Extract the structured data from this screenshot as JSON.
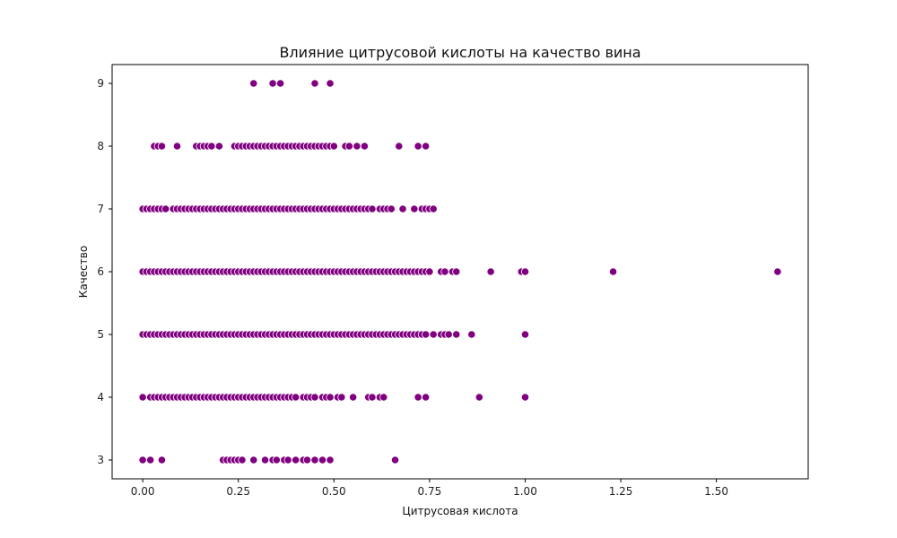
{
  "chart_data": {
    "type": "scatter",
    "title": "Влияние цитрусовой кислоты на качество вина",
    "xlabel": "Цитрусовая кислота",
    "ylabel": "Качество",
    "xlim": [
      -0.08,
      1.74
    ],
    "ylim": [
      2.7,
      9.3
    ],
    "xticks": [
      "0.00",
      "0.25",
      "0.50",
      "0.75",
      "1.00",
      "1.25",
      "1.50"
    ],
    "yticks": [
      "3",
      "4",
      "5",
      "6",
      "7",
      "8",
      "9"
    ],
    "grid": false,
    "marker_color": "#800080",
    "marker_edge_color": "#ffffff",
    "points": [
      {
        "y": 9,
        "x": [
          0.29,
          0.34,
          0.36,
          0.45,
          0.49
        ]
      },
      {
        "y": 8,
        "x": [
          0.03,
          0.04,
          0.05,
          0.09,
          0.14,
          0.15,
          0.16,
          0.17,
          0.18,
          0.2,
          0.24,
          0.25,
          0.26,
          0.27,
          0.28,
          0.29,
          0.3,
          0.31,
          0.32,
          0.33,
          0.34,
          0.35,
          0.36,
          0.37,
          0.38,
          0.39,
          0.4,
          0.41,
          0.42,
          0.43,
          0.44,
          0.45,
          0.46,
          0.47,
          0.48,
          0.49,
          0.5,
          0.53,
          0.54,
          0.56,
          0.58,
          0.67,
          0.72,
          0.74
        ]
      },
      {
        "y": 7,
        "x": [
          0.0,
          0.01,
          0.02,
          0.03,
          0.04,
          0.05,
          0.06,
          0.08,
          0.09,
          0.1,
          0.11,
          0.12,
          0.13,
          0.14,
          0.15,
          0.16,
          0.17,
          0.18,
          0.19,
          0.2,
          0.21,
          0.22,
          0.23,
          0.24,
          0.25,
          0.26,
          0.27,
          0.28,
          0.29,
          0.3,
          0.31,
          0.32,
          0.33,
          0.34,
          0.35,
          0.36,
          0.37,
          0.38,
          0.39,
          0.4,
          0.41,
          0.42,
          0.43,
          0.44,
          0.45,
          0.46,
          0.47,
          0.48,
          0.49,
          0.5,
          0.51,
          0.52,
          0.53,
          0.54,
          0.55,
          0.56,
          0.57,
          0.58,
          0.59,
          0.6,
          0.62,
          0.63,
          0.64,
          0.65,
          0.68,
          0.71,
          0.73,
          0.74,
          0.75,
          0.76
        ]
      },
      {
        "y": 6,
        "x": [
          0.0,
          0.01,
          0.02,
          0.03,
          0.04,
          0.05,
          0.06,
          0.07,
          0.08,
          0.09,
          0.1,
          0.11,
          0.12,
          0.13,
          0.14,
          0.15,
          0.16,
          0.17,
          0.18,
          0.19,
          0.2,
          0.21,
          0.22,
          0.23,
          0.24,
          0.25,
          0.26,
          0.27,
          0.28,
          0.29,
          0.3,
          0.31,
          0.32,
          0.33,
          0.34,
          0.35,
          0.36,
          0.37,
          0.38,
          0.39,
          0.4,
          0.41,
          0.42,
          0.43,
          0.44,
          0.45,
          0.46,
          0.47,
          0.48,
          0.49,
          0.5,
          0.51,
          0.52,
          0.53,
          0.54,
          0.55,
          0.56,
          0.57,
          0.58,
          0.59,
          0.6,
          0.61,
          0.62,
          0.63,
          0.64,
          0.65,
          0.66,
          0.67,
          0.68,
          0.69,
          0.7,
          0.71,
          0.72,
          0.73,
          0.74,
          0.75,
          0.78,
          0.79,
          0.81,
          0.82,
          0.91,
          0.99,
          1.0,
          1.23,
          1.66
        ]
      },
      {
        "y": 5,
        "x": [
          0.0,
          0.01,
          0.02,
          0.03,
          0.04,
          0.05,
          0.06,
          0.07,
          0.08,
          0.09,
          0.1,
          0.11,
          0.12,
          0.13,
          0.14,
          0.15,
          0.16,
          0.17,
          0.18,
          0.19,
          0.2,
          0.21,
          0.22,
          0.23,
          0.24,
          0.25,
          0.26,
          0.27,
          0.28,
          0.29,
          0.3,
          0.31,
          0.32,
          0.33,
          0.34,
          0.35,
          0.36,
          0.37,
          0.38,
          0.39,
          0.4,
          0.41,
          0.42,
          0.43,
          0.44,
          0.45,
          0.46,
          0.47,
          0.48,
          0.49,
          0.5,
          0.51,
          0.52,
          0.53,
          0.54,
          0.55,
          0.56,
          0.57,
          0.58,
          0.59,
          0.6,
          0.61,
          0.62,
          0.63,
          0.64,
          0.65,
          0.66,
          0.67,
          0.68,
          0.69,
          0.7,
          0.71,
          0.72,
          0.73,
          0.74,
          0.76,
          0.78,
          0.79,
          0.8,
          0.82,
          0.86,
          1.0
        ]
      },
      {
        "y": 4,
        "x": [
          0.0,
          0.02,
          0.03,
          0.04,
          0.05,
          0.06,
          0.07,
          0.08,
          0.09,
          0.1,
          0.11,
          0.12,
          0.13,
          0.14,
          0.15,
          0.16,
          0.17,
          0.18,
          0.19,
          0.2,
          0.21,
          0.22,
          0.23,
          0.24,
          0.25,
          0.26,
          0.27,
          0.28,
          0.29,
          0.3,
          0.31,
          0.32,
          0.33,
          0.34,
          0.35,
          0.36,
          0.37,
          0.38,
          0.39,
          0.4,
          0.42,
          0.43,
          0.44,
          0.45,
          0.47,
          0.48,
          0.49,
          0.51,
          0.52,
          0.55,
          0.59,
          0.6,
          0.62,
          0.63,
          0.72,
          0.74,
          0.88,
          1.0
        ]
      },
      {
        "y": 3,
        "x": [
          0.0,
          0.02,
          0.05,
          0.21,
          0.22,
          0.23,
          0.24,
          0.25,
          0.26,
          0.29,
          0.32,
          0.34,
          0.35,
          0.37,
          0.38,
          0.4,
          0.42,
          0.43,
          0.45,
          0.47,
          0.49,
          0.66
        ]
      }
    ]
  }
}
